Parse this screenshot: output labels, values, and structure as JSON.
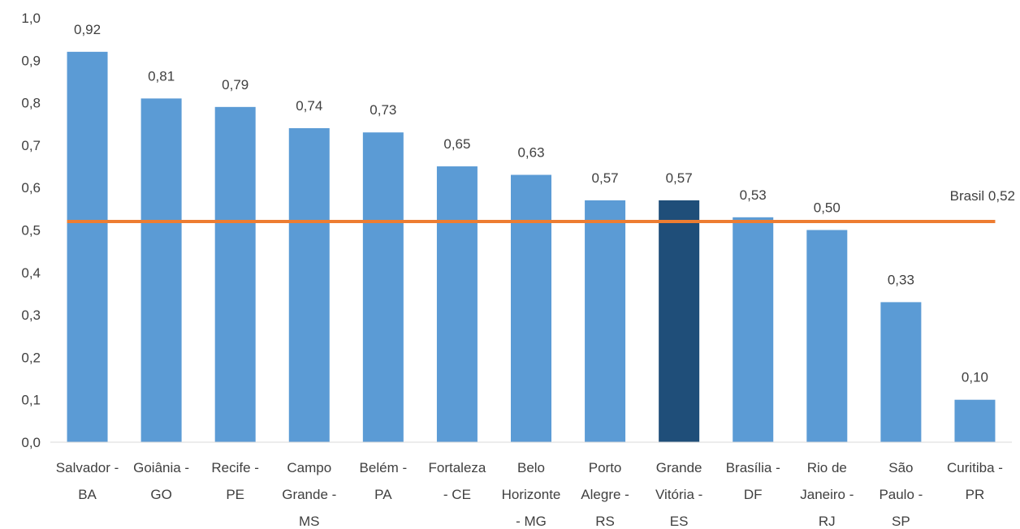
{
  "chart_data": {
    "type": "bar",
    "title": "",
    "xlabel": "",
    "ylabel": "",
    "ylim": [
      0,
      1.0
    ],
    "yticks": [
      "0,0",
      "0,1",
      "0,2",
      "0,3",
      "0,4",
      "0,5",
      "0,6",
      "0,7",
      "0,8",
      "0,9",
      "1,0"
    ],
    "categories": [
      [
        "Salvador -",
        "BA"
      ],
      [
        "Goiânia -",
        "GO"
      ],
      [
        "Recife -",
        "PE"
      ],
      [
        "Campo",
        "Grande -",
        "MS"
      ],
      [
        "Belém -",
        "PA"
      ],
      [
        "Fortaleza",
        "- CE"
      ],
      [
        "Belo",
        "Horizonte",
        "- MG"
      ],
      [
        "Porto",
        "Alegre -",
        "RS"
      ],
      [
        "Grande",
        "Vitória -",
        "ES"
      ],
      [
        "Brasília -",
        "DF"
      ],
      [
        "Rio de",
        "Janeiro -",
        "RJ"
      ],
      [
        "São",
        "Paulo -",
        "SP"
      ],
      [
        "Curitiba -",
        "PR"
      ]
    ],
    "values": [
      0.92,
      0.81,
      0.79,
      0.74,
      0.73,
      0.65,
      0.63,
      0.57,
      0.57,
      0.53,
      0.5,
      0.33,
      0.1
    ],
    "value_labels": [
      "0,92",
      "0,81",
      "0,79",
      "0,74",
      "0,73",
      "0,65",
      "0,63",
      "0,57",
      "0,57",
      "0,53",
      "0,50",
      "0,33",
      "0,10"
    ],
    "bar_color": "#5B9BD5",
    "highlight_index": 8,
    "highlight_color": "#1F4E79",
    "reference_line": {
      "value": 0.52,
      "label": "Brasil 0,52",
      "color": "#ED7D31"
    },
    "grid": false
  }
}
